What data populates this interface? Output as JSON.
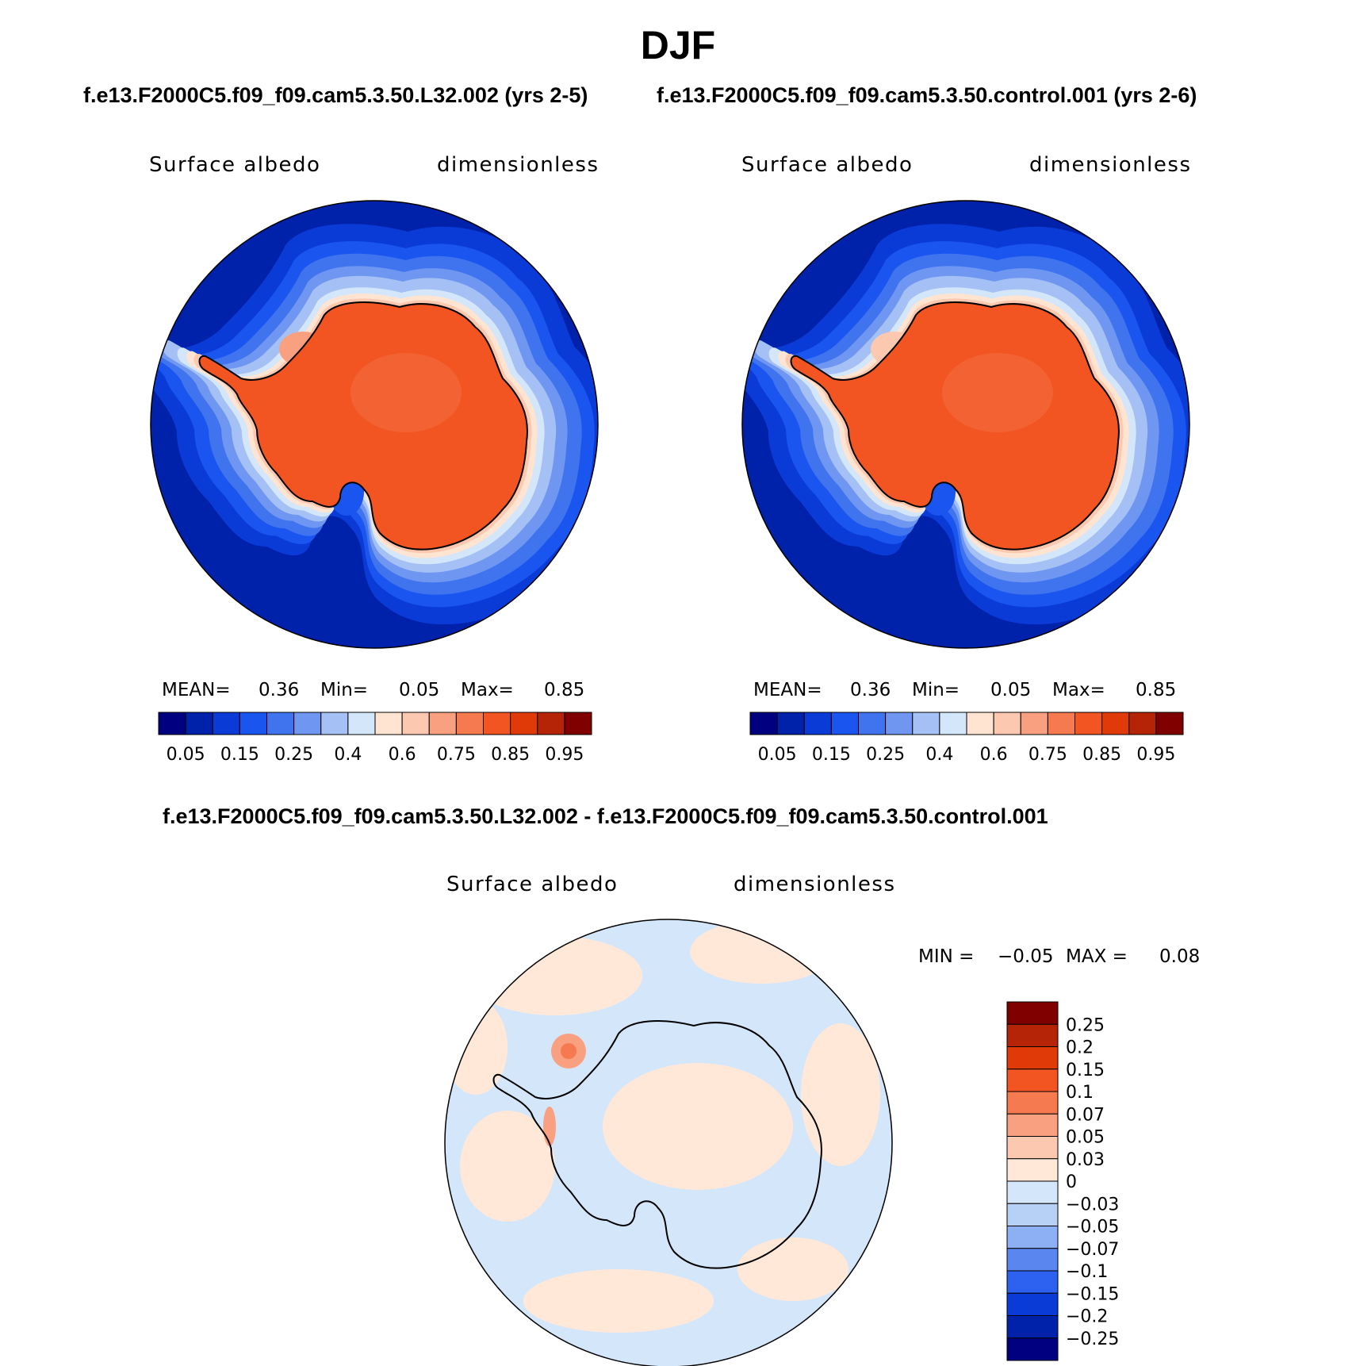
{
  "figure_title": "DJF",
  "panel_left": {
    "case_title": "f.e13.F2000C5.f09_f09.cam5.3.50.L32.002 (yrs 2-5)",
    "variable": "Surface albedo",
    "units": "dimensionless",
    "stats": {
      "mean_label": "MEAN=",
      "mean": "0.36",
      "min_label": "Min=",
      "min": "0.05",
      "max_label": "Max=",
      "max": "0.85"
    }
  },
  "panel_right": {
    "case_title": "f.e13.F2000C5.f09_f09.cam5.3.50.control.001 (yrs 2-6)",
    "variable": "Surface albedo",
    "units": "dimensionless",
    "stats": {
      "mean_label": "MEAN=",
      "mean": "0.36",
      "min_label": "Min=",
      "min": "0.05",
      "max_label": "Max=",
      "max": "0.85"
    }
  },
  "panel_diff": {
    "case_title": "f.e13.F2000C5.f09_f09.cam5.3.50.L32.002 - f.e13.F2000C5.f09_f09.cam5.3.50.control.001",
    "variable": "Surface albedo",
    "units": "dimensionless",
    "stats": {
      "min_label": "MIN =",
      "min": "−0.05",
      "max_label": "MAX =",
      "max": "0.08"
    }
  },
  "chart_data": [
    {
      "type": "heatmap",
      "projection": "south-polar stereographic",
      "title": "f.e13.F2000C5.f09_f09.cam5.3.50.L32.002 (yrs 2-5)",
      "variable": "Surface albedo",
      "units": "dimensionless",
      "colorbar_levels": [
        0.05,
        0.1,
        0.15,
        0.2,
        0.25,
        0.3,
        0.4,
        0.5,
        0.6,
        0.7,
        0.75,
        0.8,
        0.85,
        0.9,
        0.95
      ],
      "colorbar_tick_labels": [
        "0.05",
        "0.15",
        "0.25",
        "0.4",
        "0.6",
        "0.75",
        "0.85",
        "0.95"
      ],
      "colors": [
        "#000080",
        "#0022aa",
        "#0b3bd6",
        "#1a55f0",
        "#3f74ee",
        "#6f97f2",
        "#a4c0f5",
        "#d4e6fa",
        "#ffe4d2",
        "#fcc8b0",
        "#f9a081",
        "#f67a50",
        "#f25522",
        "#e03a08",
        "#b52407",
        "#800000"
      ],
      "mean": 0.36,
      "min": 0.05,
      "max": 0.85
    },
    {
      "type": "heatmap",
      "projection": "south-polar stereographic",
      "title": "f.e13.F2000C5.f09_f09.cam5.3.50.control.001 (yrs 2-6)",
      "variable": "Surface albedo",
      "units": "dimensionless",
      "colorbar_levels": [
        0.05,
        0.1,
        0.15,
        0.2,
        0.25,
        0.3,
        0.4,
        0.5,
        0.6,
        0.7,
        0.75,
        0.8,
        0.85,
        0.9,
        0.95
      ],
      "colorbar_tick_labels": [
        "0.05",
        "0.15",
        "0.25",
        "0.4",
        "0.6",
        "0.75",
        "0.85",
        "0.95"
      ],
      "colors": [
        "#000080",
        "#0022aa",
        "#0b3bd6",
        "#1a55f0",
        "#3f74ee",
        "#6f97f2",
        "#a4c0f5",
        "#d4e6fa",
        "#ffe4d2",
        "#fcc8b0",
        "#f9a081",
        "#f67a50",
        "#f25522",
        "#e03a08",
        "#b52407",
        "#800000"
      ],
      "mean": 0.36,
      "min": 0.05,
      "max": 0.85
    },
    {
      "type": "heatmap",
      "projection": "south-polar stereographic",
      "title": "f.e13.F2000C5.f09_f09.cam5.3.50.L32.002 - f.e13.F2000C5.f09_f09.cam5.3.50.control.001",
      "variable": "Surface albedo",
      "units": "dimensionless",
      "colorbar_tick_labels": [
        "0.25",
        "0.2",
        "0.15",
        "0.1",
        "0.07",
        "0.05",
        "0.03",
        "0",
        "−0.03",
        "−0.05",
        "−0.07",
        "−0.1",
        "−0.15",
        "−0.2",
        "−0.25"
      ],
      "colors": [
        "#800000",
        "#b52407",
        "#e03a08",
        "#f25522",
        "#f67a50",
        "#f9a081",
        "#fcc8b0",
        "#ffe8d8",
        "#d4e6fa",
        "#b7d0f6",
        "#8cb0f3",
        "#5a86ef",
        "#2d62f0",
        "#0b3bd6",
        "#0022aa",
        "#000080"
      ],
      "min": -0.05,
      "max": 0.08
    }
  ]
}
